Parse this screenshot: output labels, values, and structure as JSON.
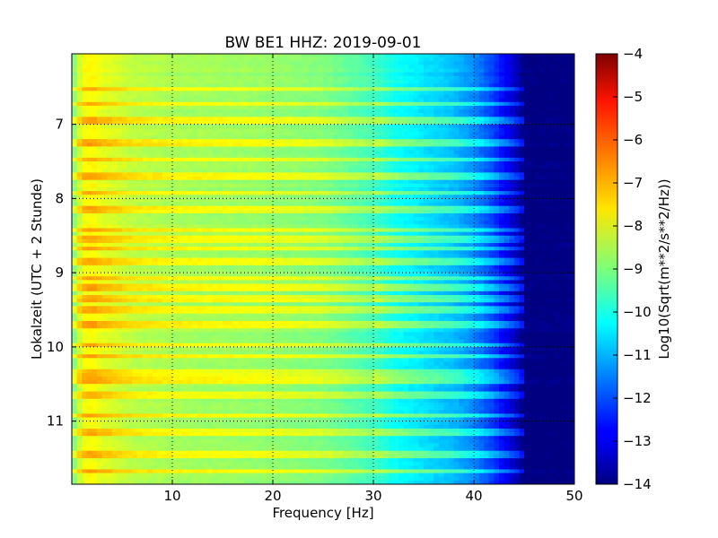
{
  "chart_data": {
    "type": "heatmap",
    "title": "BW BE1 HHZ: 2019-09-01",
    "xlabel": "Frequency [Hz]",
    "ylabel": "Lokalzeit (UTC + 2 Stunde)",
    "xlim": [
      0,
      50
    ],
    "ylim": [
      11.85,
      6.05
    ],
    "y_inverted": true,
    "x_ticks": [
      10,
      20,
      30,
      40,
      50
    ],
    "y_ticks": [
      7,
      8,
      9,
      10,
      11
    ],
    "grid": true,
    "colormap": "jet",
    "colorbar": {
      "label": "Log10(Sqrt(m**2/s**2/Hz))",
      "range": [
        -14,
        -4
      ],
      "ticks": [
        -4,
        -5,
        -6,
        -7,
        -8,
        -9,
        -10,
        -11,
        -12,
        -13,
        -14
      ]
    },
    "spectral_profile": {
      "frequency_hz": [
        0,
        1,
        2,
        3,
        4,
        6,
        10,
        15,
        20,
        25,
        30,
        32,
        35,
        38,
        40,
        42,
        44,
        45,
        50
      ],
      "log10_amplitude": [
        -9.2,
        -7.9,
        -7.7,
        -8.0,
        -8.1,
        -8.4,
        -8.6,
        -8.7,
        -8.8,
        -9.0,
        -9.6,
        -10.1,
        -10.5,
        -10.9,
        -11.4,
        -12.2,
        -13.3,
        -14.0,
        -14.0
      ]
    },
    "loud_hours": [
      6.52,
      6.72,
      6.95,
      7.25,
      7.47,
      7.7,
      7.93,
      8.16,
      8.43,
      8.56,
      8.68,
      8.86,
      9.08,
      9.2,
      9.32,
      9.37,
      9.5,
      9.7,
      9.98,
      10.12,
      10.36,
      10.45,
      10.66,
      10.93,
      11.15,
      11.45,
      11.67
    ]
  }
}
